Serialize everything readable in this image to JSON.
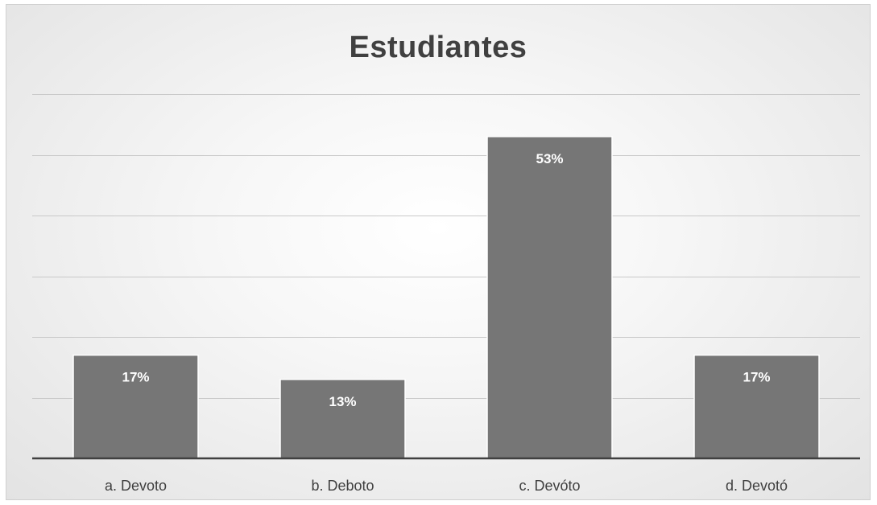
{
  "chart_data": {
    "type": "bar",
    "title": "Estudiantes",
    "categories": [
      "a. Devoto",
      "b. Deboto",
      "c. Devóto",
      "d. Devotó"
    ],
    "values": [
      17,
      13,
      53,
      17
    ],
    "data_labels": [
      "17%",
      "13%",
      "53%",
      "17%"
    ],
    "xlabel": "",
    "ylabel": "",
    "ylim": [
      0,
      60
    ],
    "grid": true,
    "legend": "none",
    "colors": {
      "bar": "#767676",
      "title": "#404040"
    }
  }
}
